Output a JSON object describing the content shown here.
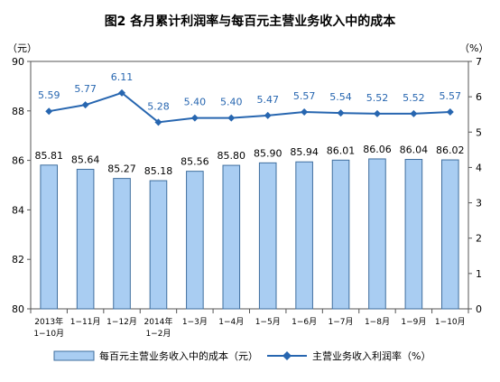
{
  "chart_data": {
    "type": "bar+line",
    "title": "图2  各月累计利润率与每百元主营业务收入中的成本",
    "left_axis_unit": "（元）",
    "right_axis_unit": "（%）",
    "categories": [
      [
        "2013年",
        "1−10月"
      ],
      [
        "1−11月"
      ],
      [
        "1−12月"
      ],
      [
        "2014年",
        "1−2月"
      ],
      [
        "1−3月"
      ],
      [
        "1−4月"
      ],
      [
        "1−5月"
      ],
      [
        "1−6月"
      ],
      [
        "1−7月"
      ],
      [
        "1−8月"
      ],
      [
        "1−9月"
      ],
      [
        "1−10月"
      ]
    ],
    "left_axis": {
      "min": 80,
      "max": 90,
      "ticks": [
        80,
        82,
        84,
        86,
        88,
        90
      ]
    },
    "right_axis": {
      "min": 0,
      "max": 7,
      "ticks": [
        0,
        1,
        2,
        3,
        4,
        5,
        6,
        7
      ]
    },
    "series": [
      {
        "name": "每百元主营业务收入中的成本（元）",
        "type": "bar",
        "axis": "left",
        "values": [
          85.81,
          85.64,
          85.27,
          85.18,
          85.56,
          85.8,
          85.9,
          85.94,
          86.01,
          86.06,
          86.04,
          86.02
        ],
        "labels": [
          "85.81",
          "85.64",
          "85.27",
          "85.18",
          "85.56",
          "85.80",
          "85.90",
          "85.94",
          "86.01",
          "86.06",
          "86.04",
          "86.02"
        ]
      },
      {
        "name": "主营业务收入利润率（%）",
        "type": "line",
        "axis": "right",
        "values": [
          5.59,
          5.77,
          6.11,
          5.28,
          5.4,
          5.4,
          5.47,
          5.57,
          5.54,
          5.52,
          5.52,
          5.57
        ],
        "labels": [
          "5.59",
          "5.77",
          "6.11",
          "5.28",
          "5.40",
          "5.40",
          "5.47",
          "5.57",
          "5.54",
          "5.52",
          "5.52",
          "5.57"
        ]
      }
    ],
    "colors": {
      "bar_fill": "#a9cdf2",
      "bar_stroke": "#3f6e9e",
      "line": "#2766b0",
      "line_label": "#2766b0",
      "axis": "#555555",
      "text": "#000000"
    },
    "legend_position": "bottom",
    "grid": false
  }
}
